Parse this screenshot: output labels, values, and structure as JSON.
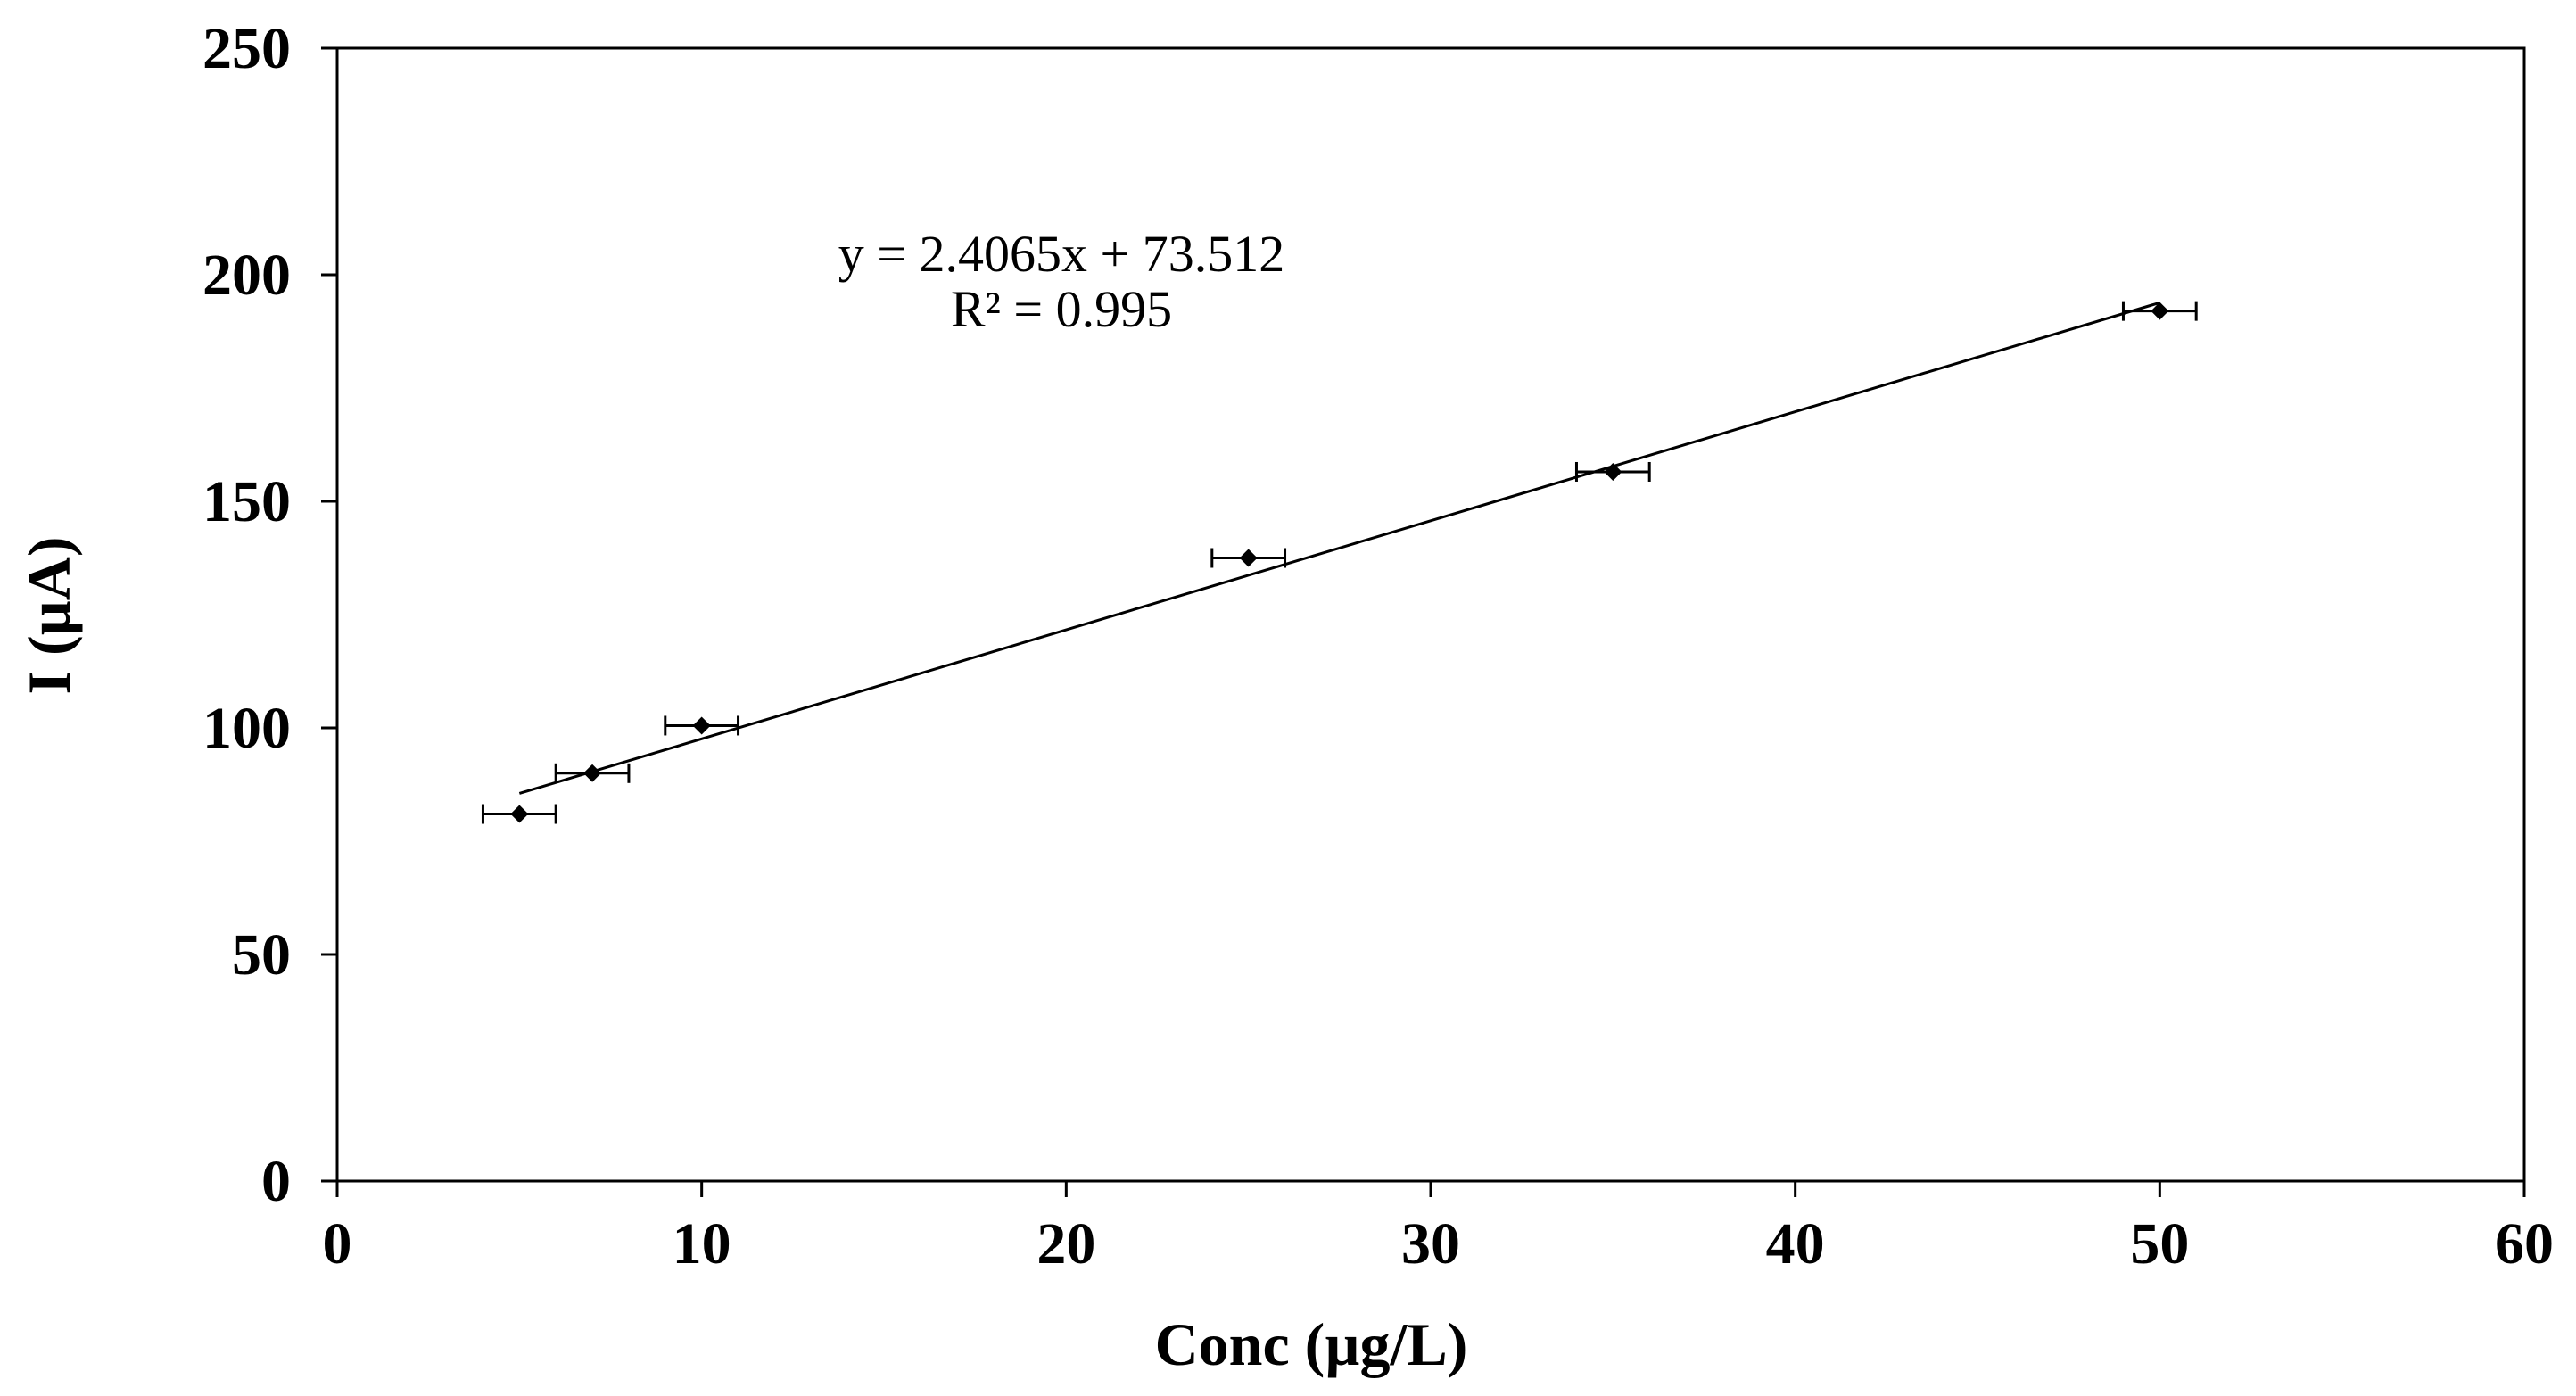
{
  "chart_data": {
    "type": "scatter",
    "title": "",
    "xlabel": "Conc (µg/L)",
    "ylabel": "I (µA)",
    "xlim": [
      0,
      60
    ],
    "ylim": [
      0,
      250
    ],
    "xticks": [
      "0",
      "10",
      "20",
      "30",
      "40",
      "50",
      "60"
    ],
    "yticks": [
      "0",
      "50",
      "100",
      "150",
      "200",
      "250"
    ],
    "grid": false,
    "legend": "none",
    "series": [
      {
        "x": [
          5,
          7,
          10,
          25,
          35,
          50
        ],
        "y": [
          81,
          90,
          100.5,
          137.5,
          156.5,
          192
        ],
        "x_error": [
          1,
          1,
          1,
          1,
          1,
          1
        ],
        "marker": "diamond",
        "color": "#000000"
      }
    ],
    "trendline": {
      "type": "linear",
      "slope": 2.4065,
      "intercept": 73.512,
      "x_range": [
        5,
        50
      ],
      "color": "#000000"
    },
    "annotations": [
      "y = 2.4065x + 73.512",
      "R² = 0.995"
    ]
  }
}
